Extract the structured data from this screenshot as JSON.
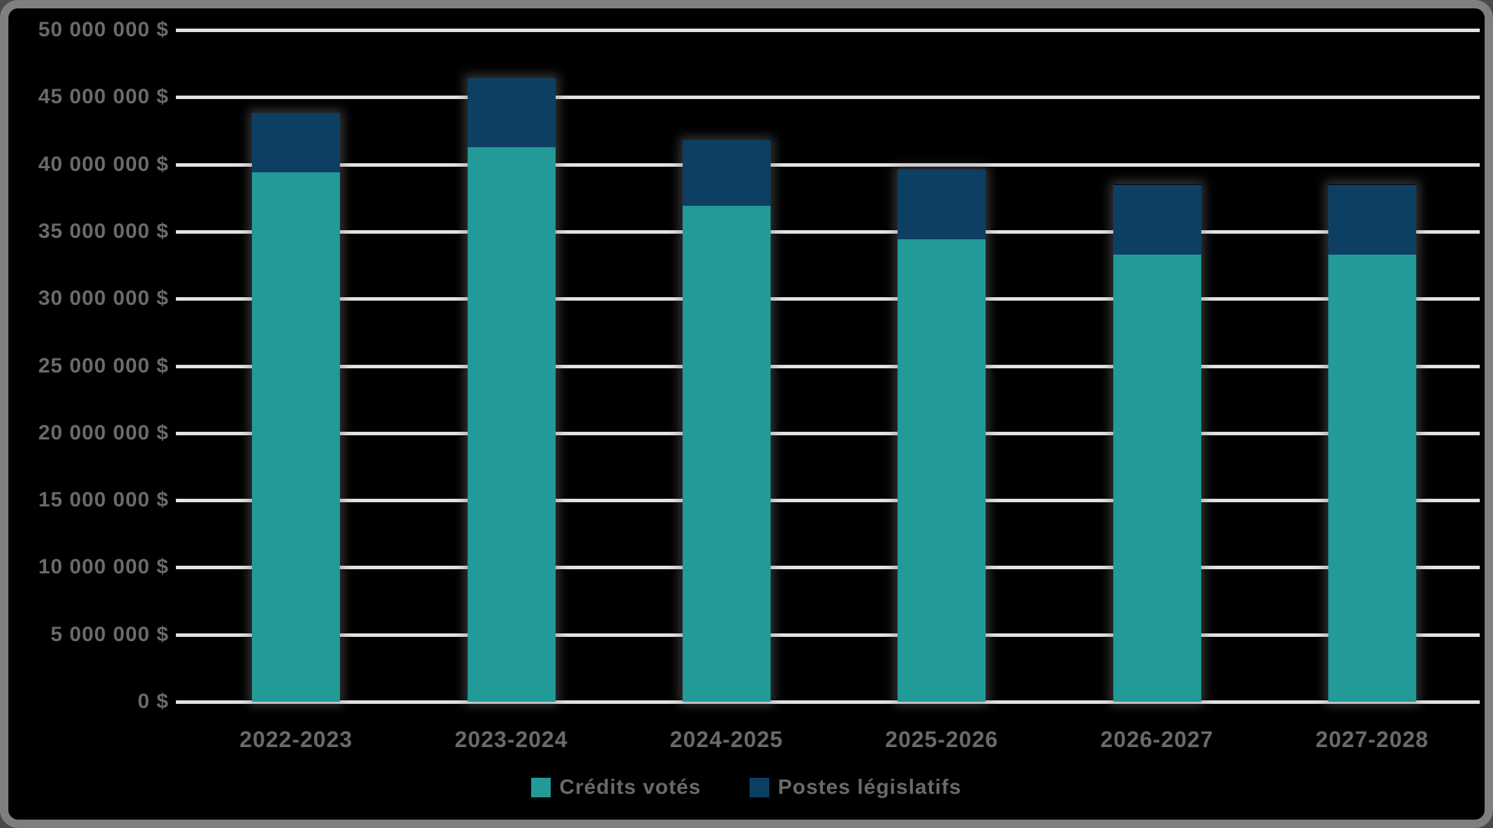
{
  "frame": {
    "background_color": "#000000",
    "border_color": "#7f7f7f"
  },
  "chart_data": {
    "type": "bar",
    "stacked": true,
    "title": "",
    "xlabel": "",
    "ylabel": "",
    "categories": [
      "2022-2023",
      "2023-2024",
      "2024-2025",
      "2025-2026",
      "2026-2027",
      "2027-2028"
    ],
    "series": [
      {
        "name": "Crédits votés",
        "color": "#219a98",
        "values": [
          39400000,
          41300000,
          36900000,
          34400000,
          33300000,
          33300000
        ]
      },
      {
        "name": "Postes législatifs",
        "color": "#0d3f62",
        "values": [
          4400000,
          5100000,
          4900000,
          5200000,
          5200000,
          5200000
        ]
      }
    ],
    "ylim": [
      0,
      50000000
    ],
    "ytick_step": 5000000,
    "ytick_labels": [
      "50 000 000 $",
      "45 000 000 $",
      "40 000 000 $",
      "35 000 000 $",
      "30 000 000 $",
      "25 000 000 $",
      "20 000 000 $",
      "15 000 000 $",
      "10 000 000 $",
      "5 000 000 $",
      "0 $"
    ],
    "grid": true,
    "gridline_color": "#e3e3e3",
    "axis_text_color": "#6a6a6a",
    "legend_position": "bottom"
  },
  "legend": {
    "items": [
      {
        "label": "Crédits votés",
        "color": "#219a98"
      },
      {
        "label": "Postes législatifs",
        "color": "#0d3f62"
      }
    ]
  }
}
